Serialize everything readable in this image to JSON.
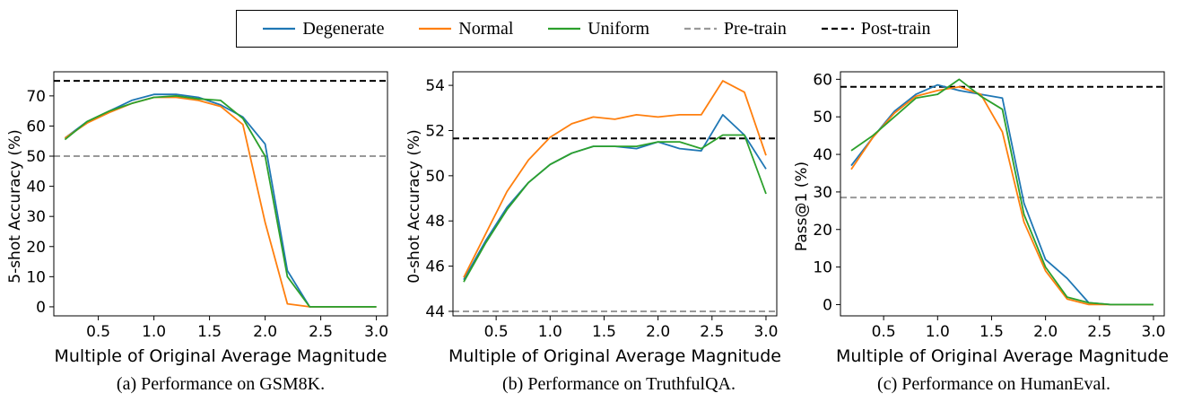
{
  "colors": {
    "Degenerate": "#1f77b4",
    "Normal": "#ff7f0e",
    "Uniform": "#2ca02c",
    "Pre-train": "#999999",
    "Post-train": "#000000"
  },
  "legend": {
    "placement": "top-center",
    "entries": [
      {
        "label": "Degenerate",
        "style": "solid"
      },
      {
        "label": "Normal",
        "style": "solid"
      },
      {
        "label": "Uniform",
        "style": "solid"
      },
      {
        "label": "Pre-train",
        "style": "dashed"
      },
      {
        "label": "Post-train",
        "style": "dashed"
      }
    ]
  },
  "chart_data": [
    {
      "type": "line",
      "caption": "(a) Performance on GSM8K.",
      "xlabel": "Multiple of Original Average Magnitude",
      "ylabel": "5-shot Accuracy (%)",
      "xlim": [
        0.1,
        3.1
      ],
      "ylim": [
        -3,
        78
      ],
      "xticks": [
        0.5,
        1.0,
        1.5,
        2.0,
        2.5,
        3.0
      ],
      "yticks": [
        0,
        10,
        20,
        30,
        40,
        50,
        60,
        70
      ],
      "reference_lines": [
        {
          "name": "Pre-train",
          "y": 50
        },
        {
          "name": "Post-train",
          "y": 75
        }
      ],
      "series": [
        {
          "name": "Degenerate",
          "x": [
            0.2,
            0.4,
            0.6,
            0.8,
            1.0,
            1.2,
            1.4,
            1.6,
            1.8,
            2.0,
            2.2,
            2.4,
            2.6,
            2.8,
            3.0
          ],
          "y": [
            56,
            61.5,
            65,
            68.5,
            70.5,
            70.5,
            69.5,
            67,
            63,
            54,
            12,
            0,
            0,
            0,
            0
          ]
        },
        {
          "name": "Normal",
          "x": [
            0.2,
            0.4,
            0.6,
            0.8,
            1.0,
            1.2,
            1.4,
            1.6,
            1.8,
            2.0,
            2.2,
            2.4,
            2.6,
            2.8,
            3.0
          ],
          "y": [
            56,
            61,
            64.5,
            67.5,
            69.5,
            69.5,
            68.5,
            66.5,
            60.5,
            28,
            1,
            0,
            0,
            0,
            0
          ]
        },
        {
          "name": "Uniform",
          "x": [
            0.2,
            0.4,
            0.6,
            0.8,
            1.0,
            1.2,
            1.4,
            1.6,
            1.8,
            2.0,
            2.2,
            2.4,
            2.6,
            2.8,
            3.0
          ],
          "y": [
            55.5,
            61.5,
            65,
            67.5,
            69.5,
            70,
            69,
            68.5,
            62.5,
            50,
            10,
            0,
            0,
            0,
            0
          ]
        }
      ]
    },
    {
      "type": "line",
      "caption": "(b) Performance on TruthfulQA.",
      "xlabel": "Multiple of Original Average Magnitude",
      "ylabel": "0-shot Accuracy (%)",
      "xlim": [
        0.1,
        3.1
      ],
      "ylim": [
        43.8,
        54.6
      ],
      "xticks": [
        0.5,
        1.0,
        1.5,
        2.0,
        2.5,
        3.0
      ],
      "yticks": [
        44,
        46,
        48,
        50,
        52,
        54
      ],
      "reference_lines": [
        {
          "name": "Pre-train",
          "y": 44
        },
        {
          "name": "Post-train",
          "y": 51.65
        }
      ],
      "series": [
        {
          "name": "Degenerate",
          "x": [
            0.2,
            0.4,
            0.6,
            0.8,
            1.0,
            1.2,
            1.4,
            1.6,
            1.8,
            2.0,
            2.2,
            2.4,
            2.6,
            2.8,
            3.0
          ],
          "y": [
            45.4,
            47.1,
            48.6,
            49.7,
            50.5,
            51.0,
            51.3,
            51.3,
            51.2,
            51.5,
            51.2,
            51.1,
            52.7,
            51.8,
            50.3
          ]
        },
        {
          "name": "Normal",
          "x": [
            0.2,
            0.4,
            0.6,
            0.8,
            1.0,
            1.2,
            1.4,
            1.6,
            1.8,
            2.0,
            2.2,
            2.4,
            2.6,
            2.8,
            3.0
          ],
          "y": [
            45.5,
            47.4,
            49.3,
            50.7,
            51.7,
            52.3,
            52.6,
            52.5,
            52.7,
            52.6,
            52.7,
            52.7,
            54.2,
            53.7,
            50.9
          ]
        },
        {
          "name": "Uniform",
          "x": [
            0.2,
            0.4,
            0.6,
            0.8,
            1.0,
            1.2,
            1.4,
            1.6,
            1.8,
            2.0,
            2.2,
            2.4,
            2.6,
            2.8,
            3.0
          ],
          "y": [
            45.3,
            47.0,
            48.5,
            49.7,
            50.5,
            51.0,
            51.3,
            51.3,
            51.3,
            51.5,
            51.5,
            51.2,
            51.8,
            51.8,
            49.2
          ]
        }
      ]
    },
    {
      "type": "line",
      "caption": "(c) Performance on HumanEval.",
      "xlabel": "Multiple of Original Average Magnitude",
      "ylabel": "Pass@1 (%)",
      "xlim": [
        0.1,
        3.1
      ],
      "ylim": [
        -3,
        62
      ],
      "xticks": [
        0.5,
        1.0,
        1.5,
        2.0,
        2.5,
        3.0
      ],
      "yticks": [
        0,
        10,
        20,
        30,
        40,
        50,
        60
      ],
      "reference_lines": [
        {
          "name": "Pre-train",
          "y": 28.5
        },
        {
          "name": "Post-train",
          "y": 58
        }
      ],
      "series": [
        {
          "name": "Degenerate",
          "x": [
            0.2,
            0.4,
            0.6,
            0.8,
            1.0,
            1.2,
            1.4,
            1.6,
            1.8,
            2.0,
            2.2,
            2.4,
            2.6,
            2.8,
            3.0
          ],
          "y": [
            37,
            44.5,
            51.5,
            56,
            58.5,
            57,
            56,
            55,
            27,
            12,
            7,
            0.5,
            0,
            0,
            0
          ]
        },
        {
          "name": "Normal",
          "x": [
            0.2,
            0.4,
            0.6,
            0.8,
            1.0,
            1.2,
            1.4,
            1.6,
            1.8,
            2.0,
            2.2,
            2.4,
            2.6,
            2.8,
            3.0
          ],
          "y": [
            36,
            44.5,
            51,
            55.5,
            57,
            58,
            56,
            46,
            22,
            9,
            1.5,
            0,
            0,
            0,
            0
          ]
        },
        {
          "name": "Uniform",
          "x": [
            0.2,
            0.4,
            0.6,
            0.8,
            1.0,
            1.2,
            1.4,
            1.6,
            1.8,
            2.0,
            2.2,
            2.4,
            2.6,
            2.8,
            3.0
          ],
          "y": [
            41,
            45,
            50,
            55,
            56,
            60,
            55.5,
            52,
            24,
            10,
            2,
            0.5,
            0,
            0,
            0
          ]
        }
      ]
    }
  ]
}
